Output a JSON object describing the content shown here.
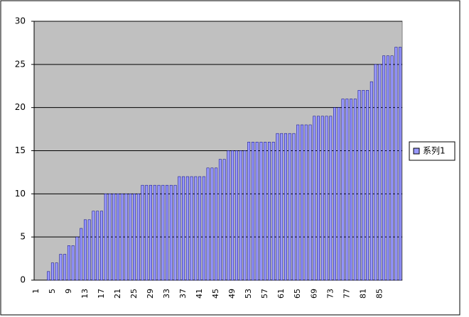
{
  "chart_data": {
    "type": "bar",
    "categories": [
      "1",
      null,
      null,
      null,
      "5",
      null,
      null,
      null,
      "9",
      null,
      null,
      null,
      "13",
      null,
      null,
      null,
      "17",
      null,
      null,
      null,
      "21",
      null,
      null,
      null,
      "25",
      null,
      null,
      null,
      "29",
      null,
      null,
      null,
      "33",
      null,
      null,
      null,
      "37",
      null,
      null,
      null,
      "41",
      null,
      null,
      null,
      "45",
      null,
      null,
      null,
      "49",
      null,
      null,
      null,
      "53",
      null,
      null,
      null,
      "57",
      null,
      null,
      null,
      "61",
      null,
      null,
      null,
      "65",
      null,
      null,
      null,
      "69",
      null,
      null,
      null,
      "73",
      null,
      null,
      null,
      "77",
      null,
      null,
      null,
      "81",
      null,
      null,
      null,
      "85",
      null,
      null,
      null,
      null,
      null
    ],
    "series": [
      {
        "name": "系列1",
        "color": "#9999ff",
        "values": [
          0,
          0,
          0,
          1,
          2,
          2,
          3,
          3,
          4,
          4,
          5,
          6,
          7,
          7,
          8,
          8,
          8,
          10,
          10,
          10,
          10,
          10,
          10,
          10,
          10,
          10,
          11,
          11,
          11,
          11,
          11,
          11,
          11,
          11,
          11,
          12,
          12,
          12,
          12,
          12,
          12,
          12,
          13,
          13,
          13,
          14,
          14,
          15,
          15,
          15,
          15,
          15,
          16,
          16,
          16,
          16,
          16,
          16,
          16,
          17,
          17,
          17,
          17,
          17,
          18,
          18,
          18,
          18,
          19,
          19,
          19,
          19,
          19,
          20,
          20,
          21,
          21,
          21,
          21,
          22,
          22,
          22,
          23,
          25,
          25,
          26,
          26,
          26,
          27,
          27
        ]
      }
    ],
    "ylim": [
      0,
      30
    ],
    "yticks": [
      0,
      5,
      10,
      15,
      20,
      25,
      30
    ],
    "grid": true,
    "legend": "right"
  }
}
